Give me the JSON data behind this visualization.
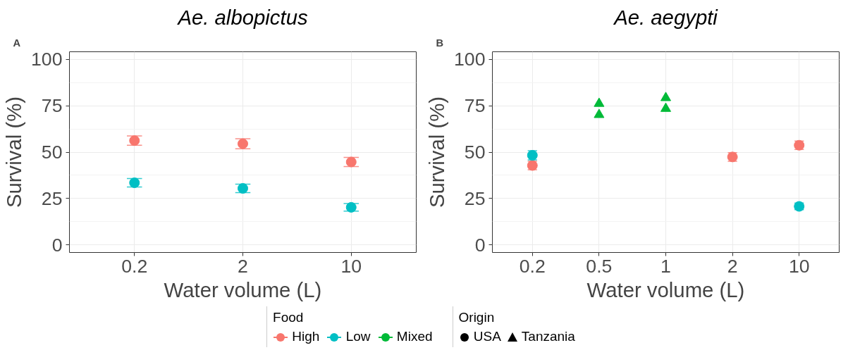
{
  "chart_data": [
    {
      "type": "scatter",
      "title": "Ae. albopictus",
      "xlabel": "Water volume (L)",
      "ylabel": "Survival (%)",
      "categories": [
        "0.2",
        "2",
        "10"
      ],
      "ylim": [
        -4,
        104
      ],
      "yticks": [
        0,
        25,
        50,
        75,
        100
      ],
      "grid": true,
      "legend": "bottom",
      "legend_title": "Food",
      "annotations": [
        "A"
      ],
      "series": [
        {
          "name": "High",
          "color": "#f8766d",
          "marker": "circle",
          "values": [
            56.2,
            54.5,
            44.7
          ],
          "errors": [
            2.5,
            2.7,
            2.5
          ]
        },
        {
          "name": "Low",
          "color": "#00bfc4",
          "marker": "circle",
          "values": [
            33.5,
            30.5,
            20.3
          ],
          "errors": [
            2.3,
            2.3,
            2
          ]
        }
      ]
    },
    {
      "type": "scatter",
      "title": "Ae. aegypti",
      "xlabel": "Water volume (L)",
      "ylabel": "Survival (%)",
      "categories": [
        "0.2",
        "0.5",
        "1",
        "2",
        "10"
      ],
      "ylim": [
        -4,
        104
      ],
      "yticks": [
        0,
        25,
        50,
        75,
        100
      ],
      "grid": true,
      "legend": "bottom",
      "annotations": [
        "B",
        "Origin",
        "USA",
        "Tanzania"
      ],
      "series": [
        {
          "name": "High",
          "color": "#f8766d",
          "marker": "circle",
          "x": [
            "0.2",
            "2",
            "10"
          ],
          "values": [
            42.8,
            47.4,
            53.7
          ],
          "errors": [
            2.3,
            2.3,
            2.3
          ]
        },
        {
          "name": "Low",
          "color": "#00bfc4",
          "marker": "circle",
          "x": [
            "0.2",
            "2",
            "10"
          ],
          "values": [
            48.3,
            null,
            20.8
          ],
          "errors": [
            2.5,
            null,
            1.8
          ]
        },
        {
          "name": "Mixed",
          "color": "#00ba38",
          "marker": "triangle",
          "x": [
            "0.5",
            "0.5",
            "1",
            "1"
          ],
          "values": [
            76.1,
            70.1,
            79.2,
            73.4
          ]
        }
      ]
    }
  ]
}
